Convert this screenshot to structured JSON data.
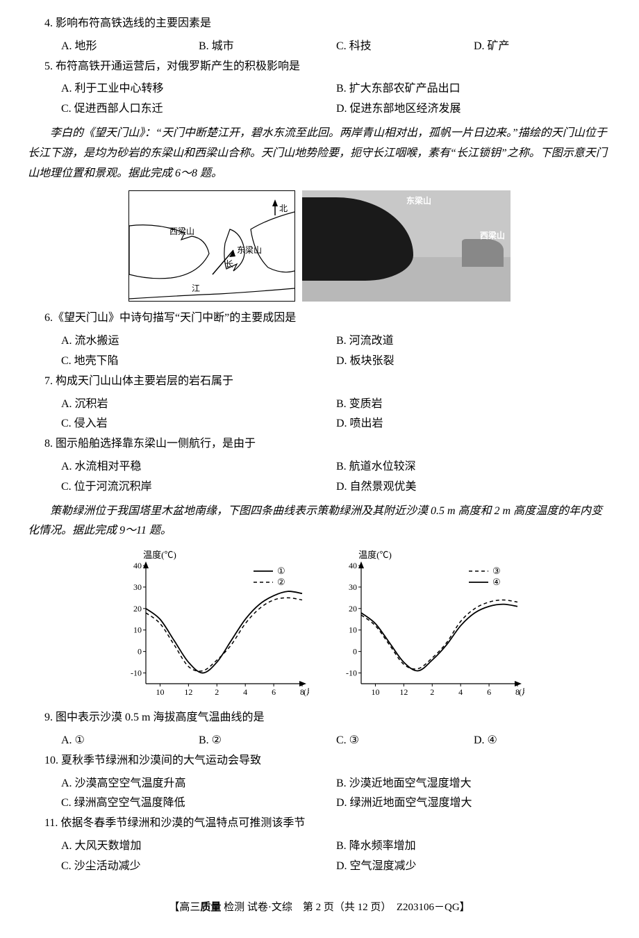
{
  "q4": {
    "text": "4. 影响布符高铁选线的主要因素是",
    "A": "A. 地形",
    "B": "B. 城市",
    "C": "C. 科技",
    "D": "D. 矿产"
  },
  "q5": {
    "text": "5. 布符高铁开通运营后，对俄罗斯产生的积极影响是",
    "A": "A. 利于工业中心转移",
    "B": "B. 扩大东部农矿产品出口",
    "C": "C. 促进西部人口东迁",
    "D": "D. 促进东部地区经济发展"
  },
  "passage1": "李白的《望天门山》：“天门中断楚江开，碧水东流至此回。两岸青山相对出，孤帆一片日边来。”描绘的天门山位于长江下游，是均为砂岩的东梁山和西梁山合称。天门山地势险要，扼守长江咽喉，素有“长江锁钥”之称。下图示意天门山地理位置和景观。据此完成 6～8 题。",
  "map": {
    "xiliang": "西梁山",
    "dongliang": "东梁山",
    "chang": "长",
    "jiang": "江",
    "north": "北"
  },
  "photo": {
    "dongliang": "东梁山",
    "xiliang": "西梁山"
  },
  "q6": {
    "text": "6.《望天门山》中诗句描写“天门中断”的主要成因是",
    "A": "A. 流水搬运",
    "B": "B. 河流改道",
    "C": "C. 地壳下陷",
    "D": "D. 板块张裂"
  },
  "q7": {
    "text": "7. 构成天门山山体主要岩层的岩石属于",
    "A": "A. 沉积岩",
    "B": "B. 变质岩",
    "C": "C. 侵入岩",
    "D": "D. 喷出岩"
  },
  "q8": {
    "text": "8. 图示船舶选择靠东梁山一侧航行，是由于",
    "A": "A. 水流相对平稳",
    "B": "B. 航道水位较深",
    "C": "C. 位于河流沉积岸",
    "D": "D. 自然景观优美"
  },
  "passage2": "策勒绿洲位于我国塔里木盆地南缘，下图四条曲线表示策勒绿洲及其附近沙漠 0.5 m 高度和 2 m 高度温度的年内变化情况。据此完成 9～11 题。",
  "chart": {
    "ylabel": "温度(℃)",
    "xlabel": "(月)",
    "ylim": [
      -15,
      40
    ],
    "yticks": [
      -10,
      0,
      10,
      20,
      30,
      40
    ],
    "xticks": [
      10,
      12,
      2,
      4,
      6,
      8
    ],
    "legend_left": {
      "l1": "①",
      "l2": "②"
    },
    "legend_right": {
      "l3": "③",
      "l4": "④"
    },
    "x_positions": [
      0,
      1,
      2,
      3,
      4,
      5,
      6,
      7,
      8,
      9,
      10,
      11
    ],
    "series1_solid": [
      20,
      15,
      5,
      -5,
      -10,
      -5,
      5,
      15,
      22,
      26,
      28,
      27
    ],
    "series2_dash": [
      18,
      13,
      3,
      -7,
      -9,
      -4,
      3,
      13,
      20,
      24,
      25,
      24
    ],
    "series3_dash": [
      17,
      12,
      3,
      -6,
      -8,
      -3,
      4,
      14,
      20,
      23,
      24,
      23
    ],
    "series4_solid": [
      18,
      13,
      4,
      -5,
      -9,
      -4,
      3,
      12,
      18,
      21,
      22,
      21
    ],
    "colors": {
      "axis": "#000",
      "line": "#000",
      "bg": "#fff"
    }
  },
  "q9": {
    "text": "9. 图中表示沙漠 0.5 m 海拔高度气温曲线的是",
    "A": "A. ①",
    "B": "B. ②",
    "C": "C. ③",
    "D": "D. ④"
  },
  "q10": {
    "text": "10. 夏秋季节绿洲和沙漠间的大气运动会导致",
    "A": "A. 沙漠高空空气温度升高",
    "B": "B. 沙漠近地面空气湿度增大",
    "C": "C. 绿洲高空空气温度降低",
    "D": "D. 绿洲近地面空气湿度增大"
  },
  "q11": {
    "text": "11. 依据冬春季节绿洲和沙漠的气温特点可推测该季节",
    "A": "A. 大风天数增加",
    "B": "B. 降水频率增加",
    "C": "C. 沙尘活动减少",
    "D": "D. 空气湿度减少"
  },
  "footer": {
    "prefix": "【高三",
    "bold1": "质量",
    "mid1": " 检测 ",
    "mid2": "试卷·文综　第 2 页（共 12 页）　Z203106－QG】"
  }
}
